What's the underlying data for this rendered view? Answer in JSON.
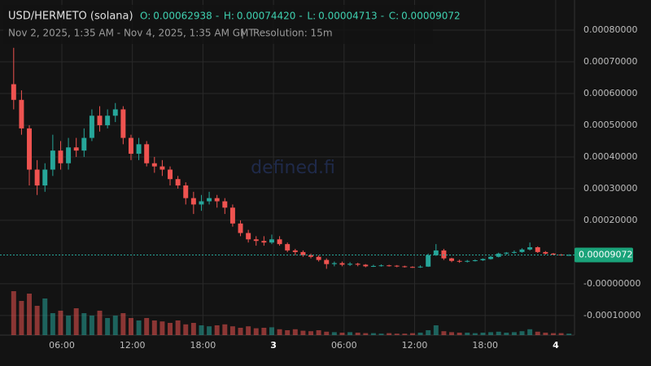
{
  "chart_data": {
    "type": "candlestick",
    "title": "USD/HERMETO (solana)",
    "ohlc_legend": [
      {
        "label": "O:",
        "value": "0.00062938"
      },
      {
        "label": "H:",
        "value": "0.00074420"
      },
      {
        "label": "L:",
        "value": "0.00004713"
      },
      {
        "label": "C:",
        "value": "0.00009072"
      }
    ],
    "subtitle": "Nov 2, 2025, 1:35 AM - Nov 4, 2025, 1:35 AM GMT",
    "separator": "|",
    "resolution": "Resolution: 15m",
    "watermark": "defined.fi",
    "up_color": "#26a69a",
    "down_color": "#ef5350",
    "open": [
      0.00062938,
      0.00058,
      0.00049,
      0.00036,
      0.00031,
      0.00036,
      0.00042,
      0.00038,
      0.00043,
      0.00042,
      0.00046,
      0.00053,
      0.0005,
      0.00053,
      0.00055,
      0.00046,
      0.00041,
      0.00044,
      0.00038,
      0.00037,
      0.00036,
      0.00033,
      0.00031,
      0.00027,
      0.00025,
      0.00026,
      0.00027,
      0.00026,
      0.00024,
      0.00019,
      0.00016,
      0.00014,
      0.000135,
      0.00013,
      0.00014,
      0.000125,
      0.000105,
      0.0001,
      9e-05,
      8.5e-05,
      7.5e-05,
      6.2e-05,
      6.5e-05,
      6e-05,
      6.3e-05,
      6e-05,
      5.5e-05,
      5.6e-05,
      5.8e-05,
      5.7e-05,
      5.5e-05,
      5.3e-05,
      5.2e-05,
      5.4e-05,
      9e-05,
      0.000105,
      8e-05,
      7.2e-05,
      7e-05,
      7.2e-05,
      7.4e-05,
      7.8e-05,
      8.5e-05,
      9.5e-05,
      9.8e-05,
      0.0001,
      0.000108,
      0.000115,
      0.0001,
      9.5e-05,
      9.2e-05,
      9e-05
    ],
    "high": [
      0.0007442,
      0.00061,
      0.0005,
      0.00039,
      0.00038,
      0.00047,
      0.00045,
      0.00046,
      0.00046,
      0.00049,
      0.00055,
      0.00056,
      0.00055,
      0.00057,
      0.00056,
      0.00047,
      0.00046,
      0.00045,
      0.0004,
      0.00039,
      0.00037,
      0.00034,
      0.00032,
      0.00029,
      0.00028,
      0.00029,
      0.00028,
      0.00027,
      0.00025,
      0.0002,
      0.00017,
      0.00015,
      0.00015,
      0.000155,
      0.00015,
      0.00013,
      0.00011,
      0.000105,
      9.5e-05,
      9e-05,
      8e-05,
      7e-05,
      7e-05,
      6.8e-05,
      6.6e-05,
      6.2e-05,
      6e-05,
      6.1e-05,
      6e-05,
      5.9e-05,
      5.7e-05,
      5.5e-05,
      5.8e-05,
      9.5e-05,
      0.000125,
      0.00011,
      8.2e-05,
      7.6e-05,
      7.5e-05,
      7.7e-05,
      8e-05,
      8.8e-05,
      9.8e-05,
      0.0001,
      0.000105,
      0.000112,
      0.00013,
      0.000118,
      0.000103,
      9.7e-05,
      9.4e-05,
      9.3e-05
    ],
    "low": [
      0.00055,
      0.00047,
      0.00031,
      0.00028,
      0.00029,
      0.00034,
      0.00036,
      0.00036,
      0.0004,
      0.0004,
      0.00045,
      0.00048,
      0.00049,
      0.00051,
      0.00044,
      0.00039,
      0.00039,
      0.00037,
      0.00035,
      0.00034,
      0.00031,
      0.0003,
      0.00025,
      0.00022,
      0.00023,
      0.00025,
      0.00024,
      0.00022,
      0.00018,
      0.00015,
      0.00013,
      0.00012,
      0.00012,
      0.000125,
      0.00012,
      0.0001,
      9e-05,
      8.5e-05,
      8e-05,
      7e-05,
      4.713e-05,
      5.5e-05,
      5.5e-05,
      5.6e-05,
      5.5e-05,
      5.2e-05,
      5.3e-05,
      5.4e-05,
      5.4e-05,
      5.2e-05,
      5.1e-05,
      5e-05,
      5e-05,
      5.3e-05,
      8.8e-05,
      7.5e-05,
      6.8e-05,
      6.6e-05,
      6.7e-05,
      7e-05,
      7.2e-05,
      7.6e-05,
      8.3e-05,
      9.2e-05,
      9.5e-05,
      9.8e-05,
      0.000105,
      9.7e-05,
      9.2e-05,
      9e-05,
      8.8e-05,
      8.8e-05
    ],
    "close": [
      0.00058,
      0.00049,
      0.00036,
      0.00031,
      0.00036,
      0.00042,
      0.00038,
      0.00043,
      0.00042,
      0.00046,
      0.00053,
      0.0005,
      0.00053,
      0.00055,
      0.00046,
      0.00041,
      0.00044,
      0.00038,
      0.00037,
      0.00036,
      0.00033,
      0.00031,
      0.00027,
      0.00025,
      0.00026,
      0.00027,
      0.00026,
      0.00024,
      0.00019,
      0.00016,
      0.00014,
      0.000135,
      0.00013,
      0.00014,
      0.000125,
      0.000105,
      0.0001,
      9e-05,
      8.5e-05,
      7.5e-05,
      6.2e-05,
      6.5e-05,
      6e-05,
      6.3e-05,
      6e-05,
      5.5e-05,
      5.6e-05,
      5.8e-05,
      5.7e-05,
      5.5e-05,
      5.3e-05,
      5.2e-05,
      5.4e-05,
      9e-05,
      0.000105,
      8e-05,
      7.2e-05,
      7e-05,
      7.2e-05,
      7.4e-05,
      7.8e-05,
      8.5e-05,
      9.5e-05,
      9.8e-05,
      0.0001,
      0.000108,
      0.000115,
      0.0001,
      9.5e-05,
      9.2e-05,
      9e-05,
      9.072e-05
    ],
    "volume": [
      90,
      70,
      85,
      60,
      75,
      45,
      50,
      40,
      55,
      45,
      40,
      50,
      35,
      40,
      45,
      35,
      30,
      35,
      30,
      28,
      25,
      30,
      22,
      25,
      20,
      18,
      20,
      22,
      18,
      15,
      18,
      14,
      15,
      16,
      12,
      10,
      12,
      9,
      8,
      10,
      7,
      6,
      5,
      6,
      5,
      4,
      4,
      3,
      4,
      3,
      3,
      4,
      5,
      10,
      20,
      8,
      6,
      5,
      5,
      4,
      5,
      6,
      7,
      5,
      6,
      8,
      12,
      7,
      5,
      4,
      4,
      3
    ],
    "vlim": [
      0,
      100
    ],
    "ylim": [
      -0.000162,
      0.000895
    ],
    "yticks": [
      {
        "value": 0.0008,
        "label": "0.00080000"
      },
      {
        "value": 0.0007,
        "label": "0.00070000"
      },
      {
        "value": 0.0006,
        "label": "0.00060000"
      },
      {
        "value": 0.0005,
        "label": "0.00050000"
      },
      {
        "value": 0.0004,
        "label": "0.00040000"
      },
      {
        "value": 0.0003,
        "label": "0.00030000"
      },
      {
        "value": 0.0002,
        "label": "0.00020000"
      },
      {
        "value": 0,
        "label": "-0.00000000"
      },
      {
        "value": -0.0001,
        "label": "-0.00010000"
      }
    ],
    "last_price": {
      "value": 9.072e-05,
      "label": "0.00009072"
    },
    "xtick_labels": [
      "06:00",
      "12:00",
      "18:00",
      "3",
      "06:00",
      "12:00",
      "18:00",
      "4"
    ],
    "grid": true
  }
}
